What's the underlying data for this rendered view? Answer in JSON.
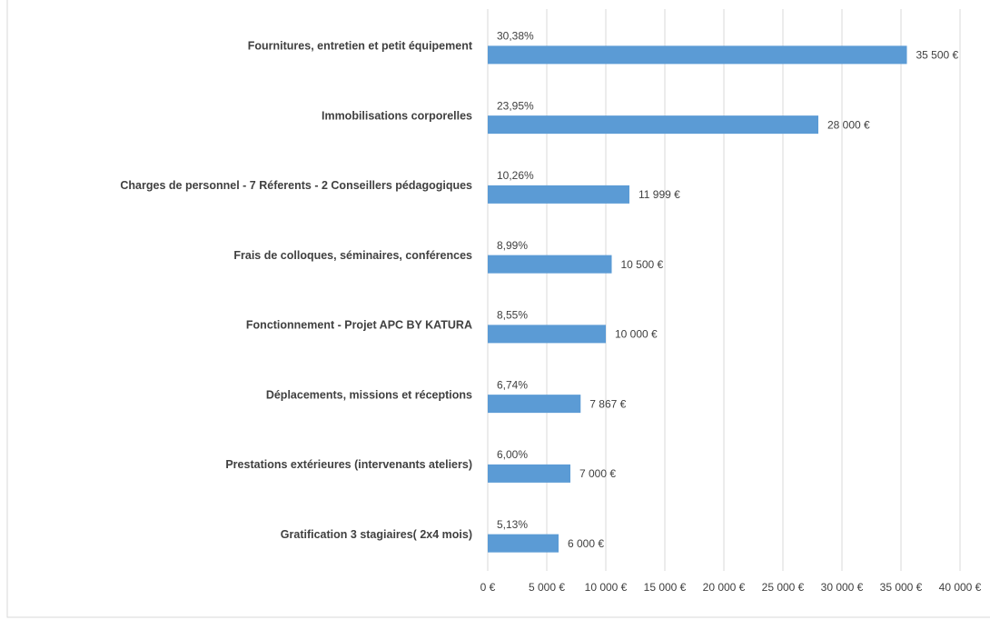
{
  "chart_data": {
    "type": "barh",
    "categories": [
      "Fournitures, entretien et petit équipement",
      "Immobilisations corporelles",
      "Charges de personnel - 7 Réferents - 2 Conseillers pédagogiques",
      "Frais de colloques, séminaires, conférences",
      "Fonctionnement - Projet APC BY KATURA",
      "Déplacements, missions et réceptions",
      "Prestations extérieures (intervenants ateliers)",
      "Gratification 3 stagiaires( 2x4 mois)"
    ],
    "values": [
      35500,
      28000,
      11999,
      10500,
      10000,
      7867,
      7000,
      6000
    ],
    "value_labels": [
      "35 500 €",
      "28 000 €",
      "11 999 €",
      "10 500 €",
      "10 000 €",
      "7 867 €",
      "7 000 €",
      "6 000 €"
    ],
    "percentages": [
      "30,38%",
      "23,95%",
      "10,26%",
      "8,99%",
      "8,55%",
      "6,74%",
      "6,00%",
      "5,13%"
    ],
    "color": "#5b9bd5",
    "xlim": [
      0,
      40000
    ],
    "xticks": [
      {
        "value": 0,
        "label": "0 €"
      },
      {
        "value": 5000,
        "label": "5 000 €"
      },
      {
        "value": 10000,
        "label": "10 000 €"
      },
      {
        "value": 15000,
        "label": "15 000 €"
      },
      {
        "value": 20000,
        "label": "20 000 €"
      },
      {
        "value": 25000,
        "label": "25 000 €"
      },
      {
        "value": 30000,
        "label": "30 000 €"
      },
      {
        "value": 35000,
        "label": "35 000 €"
      },
      {
        "value": 40000,
        "label": "40 000 €"
      }
    ],
    "grid": true
  }
}
